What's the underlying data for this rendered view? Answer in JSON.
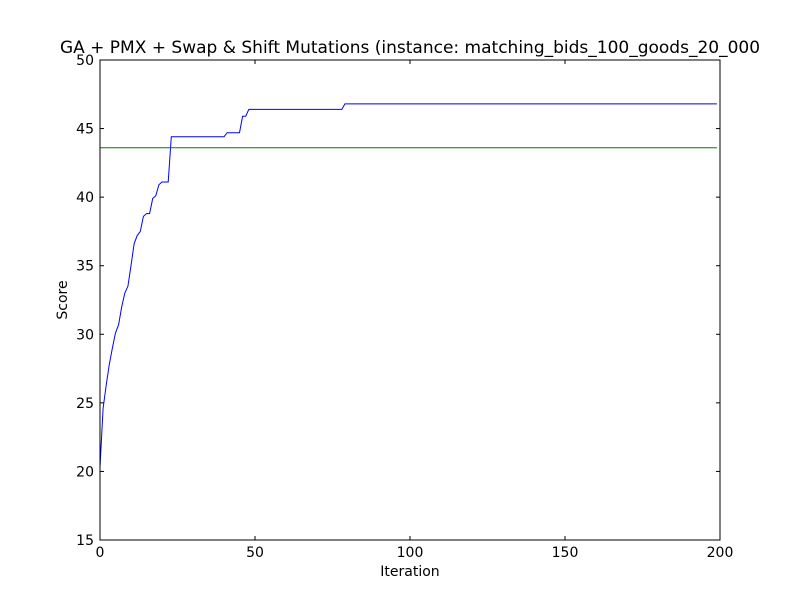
{
  "chart_data": {
    "type": "line",
    "title": "GA + PMX + Swap & Shift Mutations (instance: matching_bids_100_goods_20_000",
    "xlabel": "Iteration",
    "ylabel": "Score",
    "xlim": [
      0,
      200
    ],
    "ylim": [
      15,
      50
    ],
    "xticks": [
      0,
      50,
      100,
      150,
      200
    ],
    "yticks": [
      15,
      20,
      25,
      30,
      35,
      40,
      45,
      50
    ],
    "grid": false,
    "series": [
      {
        "color": "#0000ff",
        "x": [
          0,
          1,
          2,
          3,
          4,
          5,
          6,
          7,
          8,
          9,
          10,
          11,
          12,
          13,
          14,
          15,
          16,
          17,
          18,
          19,
          20,
          21,
          22,
          23,
          24,
          29,
          30,
          40,
          41,
          45,
          46,
          47,
          48,
          49,
          60,
          70,
          78,
          79,
          80,
          100,
          150,
          199
        ],
        "y": [
          20.3,
          24.6,
          26.3,
          27.8,
          29.0,
          30.1,
          30.7,
          32.0,
          33.0,
          33.5,
          35.0,
          36.6,
          37.2,
          37.5,
          38.6,
          38.8,
          38.8,
          39.9,
          40.1,
          40.9,
          41.1,
          41.1,
          41.1,
          44.4,
          44.4,
          44.4,
          44.4,
          44.4,
          44.7,
          44.7,
          45.9,
          45.9,
          46.4,
          46.4,
          46.4,
          46.4,
          46.4,
          46.8,
          46.8,
          46.8,
          46.8,
          46.8
        ]
      },
      {
        "color": "#008000",
        "x": [
          0,
          199
        ],
        "y": [
          43.6,
          43.6
        ]
      }
    ]
  }
}
